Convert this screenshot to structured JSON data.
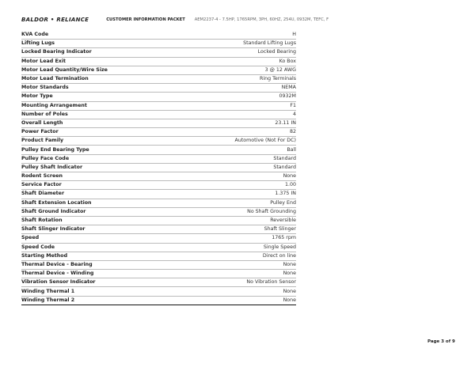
{
  "header": {
    "logo": "BALDOR • RELIANCE",
    "packet_title": "CUSTOMER INFORMATION PACKET",
    "model": "AEM2237-4 - 7.5HP, 1765RPM, 3PH, 60HZ, 254U, 0932M, TEFC, F"
  },
  "specs": [
    {
      "label": "KVA Code",
      "value": "H"
    },
    {
      "label": "Lifting Lugs",
      "value": "Standard Lifting Lugs"
    },
    {
      "label": "Locked Bearing Indicator",
      "value": "Locked Bearing"
    },
    {
      "label": "Motor Lead Exit",
      "value": "Ko Box"
    },
    {
      "label": "Motor Lead Quantity/Wire Size",
      "value": "3 @ 12 AWG"
    },
    {
      "label": "Motor Lead Termination",
      "value": "Ring Terminals"
    },
    {
      "label": "Motor Standards",
      "value": "NEMA"
    },
    {
      "label": "Motor Type",
      "value": "0932M"
    },
    {
      "label": "Mounting Arrangement",
      "value": "F1"
    },
    {
      "label": "Number of Poles",
      "value": "4"
    },
    {
      "label": "Overall Length",
      "value": "23.11 IN"
    },
    {
      "label": "Power Factor",
      "value": "82"
    },
    {
      "label": "Product Family",
      "value": "Automotive (Not For DC)"
    },
    {
      "label": "Pulley End Bearing Type",
      "value": "Ball"
    },
    {
      "label": "Pulley Face Code",
      "value": "Standard"
    },
    {
      "label": "Pulley Shaft Indicator",
      "value": "Standard"
    },
    {
      "label": "Rodent Screen",
      "value": "None"
    },
    {
      "label": "Service Factor",
      "value": "1.00"
    },
    {
      "label": "Shaft Diameter",
      "value": "1.375 IN"
    },
    {
      "label": "Shaft Extension Location",
      "value": "Pulley End"
    },
    {
      "label": "Shaft Ground Indicator",
      "value": "No Shaft Grounding"
    },
    {
      "label": "Shaft Rotation",
      "value": "Reversible"
    },
    {
      "label": "Shaft Slinger Indicator",
      "value": "Shaft Slinger"
    },
    {
      "label": "Speed",
      "value": "1765 rpm"
    },
    {
      "label": "Speed Code",
      "value": "Single Speed"
    },
    {
      "label": "Starting Method",
      "value": "Direct on line"
    },
    {
      "label": "Thermal Device - Bearing",
      "value": "None"
    },
    {
      "label": "Thermal Device - Winding",
      "value": "None"
    },
    {
      "label": "Vibration Sensor Indicator",
      "value": "No Vibration Sensor"
    },
    {
      "label": "Winding Thermal 1",
      "value": "None"
    },
    {
      "label": "Winding Thermal 2",
      "value": "None"
    }
  ],
  "footer": {
    "page": "Page 3 of 9"
  }
}
